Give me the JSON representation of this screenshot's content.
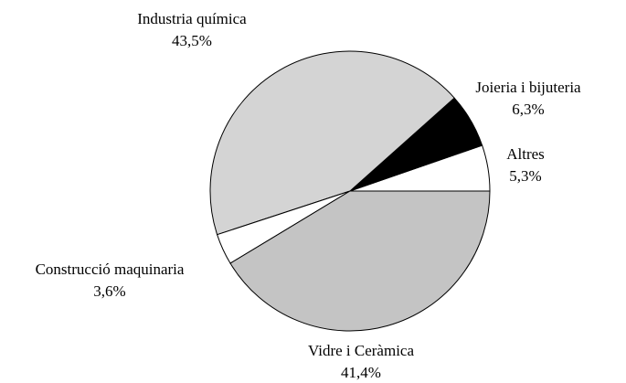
{
  "chart_data": {
    "type": "pie",
    "categories": [
      "Altres",
      "Joieria i bijuteria",
      "Industria química",
      "Construcció maquinaria",
      "Vidre i Ceràmica"
    ],
    "values": [
      5.3,
      6.3,
      43.5,
      3.6,
      41.4
    ],
    "value_labels": [
      "5,3%",
      "6,3%",
      "43,5%",
      "3,6%",
      "41,4%"
    ],
    "colors": [
      "#ffffff",
      "#000000",
      "#d4d4d4",
      "#ffffff",
      "#c4c4c4"
    ]
  }
}
